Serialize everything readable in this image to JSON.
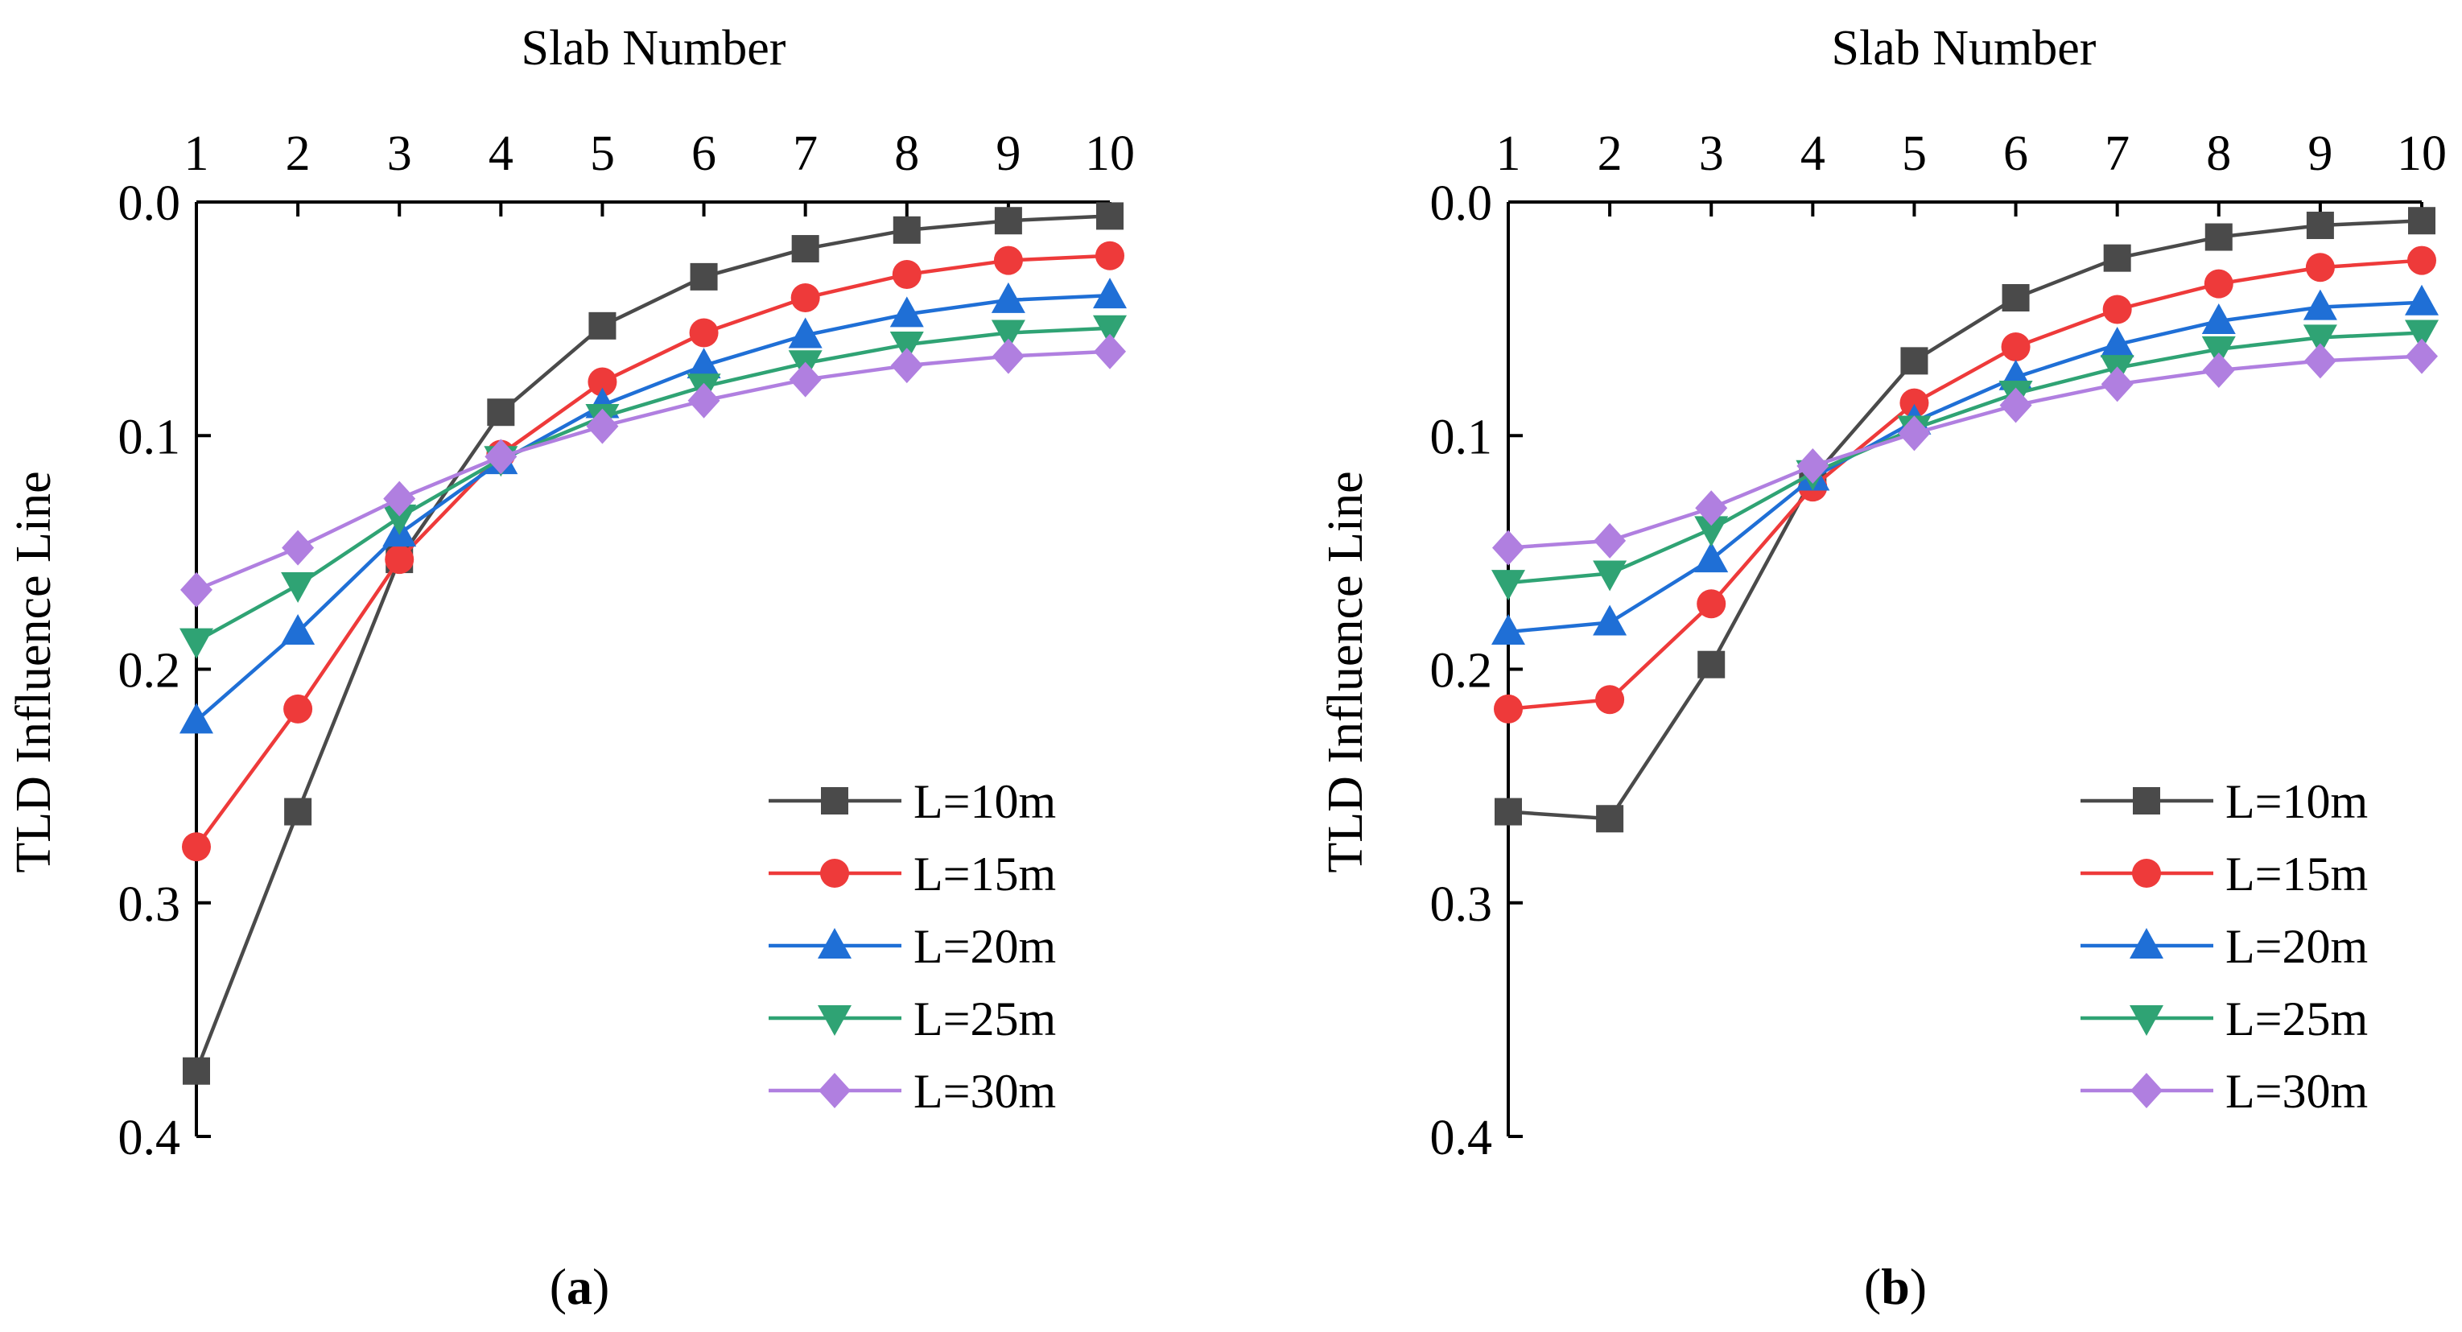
{
  "chart_data": [
    {
      "type": "line",
      "panel": "a",
      "title": "",
      "xlabel": "Slab Number",
      "ylabel": "TLD Influence Line",
      "x": [
        1,
        2,
        3,
        4,
        5,
        6,
        7,
        8,
        9,
        10
      ],
      "ylim": [
        0.4,
        0.0
      ],
      "yticks": [
        "0.0",
        "0.1",
        "0.2",
        "0.3",
        "0.4"
      ],
      "xticks": [
        "1",
        "2",
        "3",
        "4",
        "5",
        "6",
        "7",
        "8",
        "9",
        "10"
      ],
      "x_axis_position": "top",
      "legend_position": "bottom-right",
      "series": [
        {
          "name": "L=10m",
          "color": "#4a4a4a",
          "marker": "square",
          "values": [
            0.372,
            0.261,
            0.153,
            0.09,
            0.053,
            0.032,
            0.02,
            0.012,
            0.008,
            0.006
          ]
        },
        {
          "name": "L=15m",
          "color": "#ee3a3a",
          "marker": "circle",
          "values": [
            0.276,
            0.217,
            0.153,
            0.108,
            0.077,
            0.056,
            0.041,
            0.031,
            0.025,
            0.023
          ]
        },
        {
          "name": "L=20m",
          "color": "#1f6fd6",
          "marker": "triangle-up",
          "values": [
            0.222,
            0.184,
            0.142,
            0.111,
            0.087,
            0.07,
            0.057,
            0.048,
            0.042,
            0.04
          ]
        },
        {
          "name": "L=25m",
          "color": "#2fa374",
          "marker": "triangle-down",
          "values": [
            0.188,
            0.164,
            0.135,
            0.11,
            0.092,
            0.079,
            0.069,
            0.061,
            0.056,
            0.054
          ]
        },
        {
          "name": "L=30m",
          "color": "#b07fe0",
          "marker": "diamond",
          "values": [
            0.166,
            0.148,
            0.127,
            0.109,
            0.096,
            0.085,
            0.076,
            0.07,
            0.066,
            0.064
          ]
        }
      ]
    },
    {
      "type": "line",
      "panel": "b",
      "title": "",
      "xlabel": "Slab Number",
      "ylabel": "TLD Influence Line",
      "x": [
        1,
        2,
        3,
        4,
        5,
        6,
        7,
        8,
        9,
        10
      ],
      "ylim": [
        0.4,
        0.0
      ],
      "yticks": [
        "0.0",
        "0.1",
        "0.2",
        "0.3",
        "0.4"
      ],
      "xticks": [
        "1",
        "2",
        "3",
        "4",
        "5",
        "6",
        "7",
        "8",
        "9",
        "10"
      ],
      "x_axis_position": "top",
      "legend_position": "bottom-right",
      "series": [
        {
          "name": "L=10m",
          "color": "#4a4a4a",
          "marker": "square",
          "values": [
            0.261,
            0.264,
            0.198,
            0.118,
            0.068,
            0.041,
            0.024,
            0.015,
            0.01,
            0.008
          ]
        },
        {
          "name": "L=15m",
          "color": "#ee3a3a",
          "marker": "circle",
          "values": [
            0.217,
            0.213,
            0.172,
            0.122,
            0.086,
            0.062,
            0.046,
            0.035,
            0.028,
            0.025
          ]
        },
        {
          "name": "L=20m",
          "color": "#1f6fd6",
          "marker": "triangle-up",
          "values": [
            0.184,
            0.18,
            0.153,
            0.118,
            0.094,
            0.075,
            0.061,
            0.051,
            0.045,
            0.043
          ]
        },
        {
          "name": "L=25m",
          "color": "#2fa374",
          "marker": "triangle-down",
          "values": [
            0.163,
            0.159,
            0.14,
            0.116,
            0.097,
            0.082,
            0.071,
            0.063,
            0.058,
            0.056
          ]
        },
        {
          "name": "L=30m",
          "color": "#b07fe0",
          "marker": "diamond",
          "values": [
            0.148,
            0.145,
            0.131,
            0.113,
            0.099,
            0.087,
            0.078,
            0.072,
            0.068,
            0.066
          ]
        }
      ]
    }
  ],
  "panel_labels": [
    "(a)",
    "(b)"
  ]
}
